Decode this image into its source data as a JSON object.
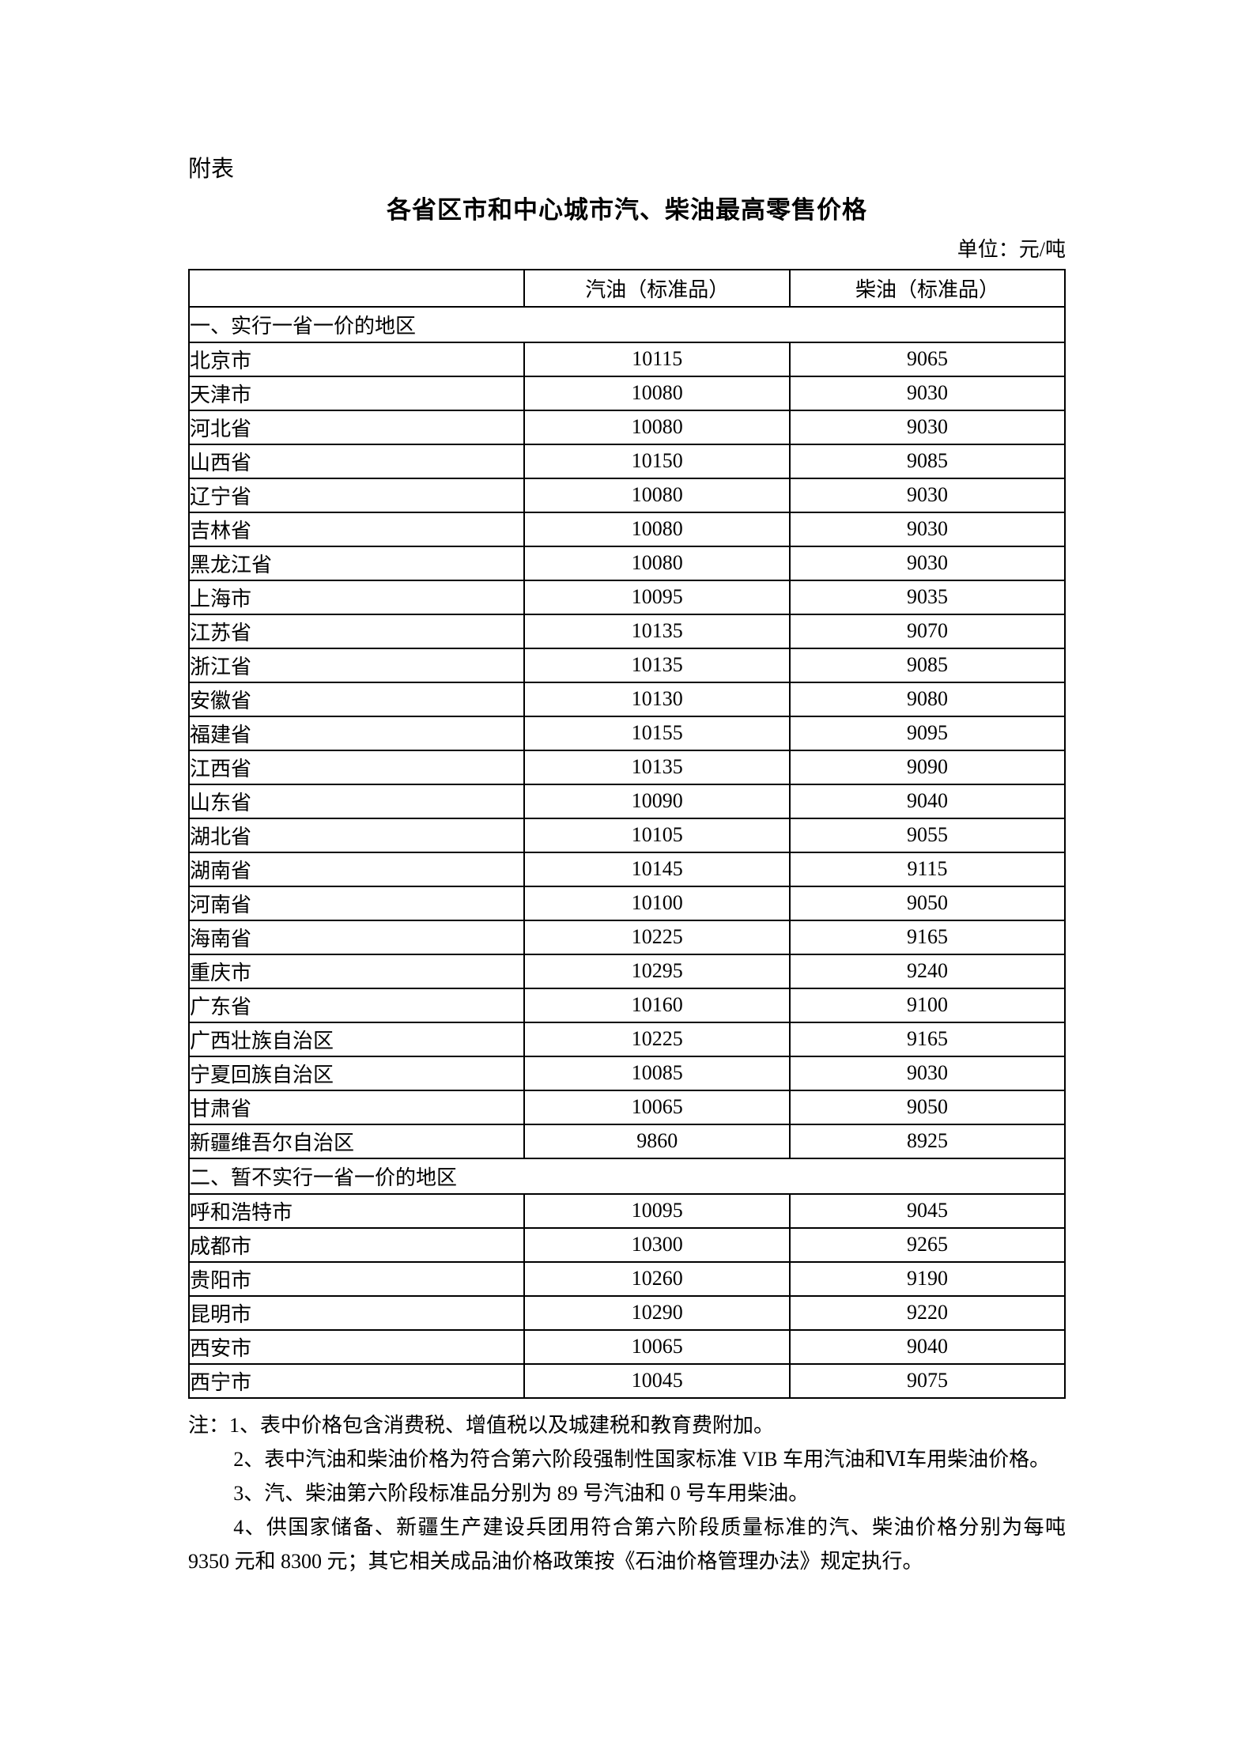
{
  "page": {
    "appendix_label": "附表",
    "title": "各省区市和中心城市汽、柴油最高零售价格",
    "unit_label": "单位：元/吨"
  },
  "table": {
    "columns": [
      "",
      "汽油（标准品）",
      "柴油（标准品）"
    ],
    "sections": [
      {
        "label": "一、实行一省一价的地区",
        "rows": [
          [
            "北京市",
            "10115",
            "9065"
          ],
          [
            "天津市",
            "10080",
            "9030"
          ],
          [
            "河北省",
            "10080",
            "9030"
          ],
          [
            "山西省",
            "10150",
            "9085"
          ],
          [
            "辽宁省",
            "10080",
            "9030"
          ],
          [
            "吉林省",
            "10080",
            "9030"
          ],
          [
            "黑龙江省",
            "10080",
            "9030"
          ],
          [
            "上海市",
            "10095",
            "9035"
          ],
          [
            "江苏省",
            "10135",
            "9070"
          ],
          [
            "浙江省",
            "10135",
            "9085"
          ],
          [
            "安徽省",
            "10130",
            "9080"
          ],
          [
            "福建省",
            "10155",
            "9095"
          ],
          [
            "江西省",
            "10135",
            "9090"
          ],
          [
            "山东省",
            "10090",
            "9040"
          ],
          [
            "湖北省",
            "10105",
            "9055"
          ],
          [
            "湖南省",
            "10145",
            "9115"
          ],
          [
            "河南省",
            "10100",
            "9050"
          ],
          [
            "海南省",
            "10225",
            "9165"
          ],
          [
            "重庆市",
            "10295",
            "9240"
          ],
          [
            "广东省",
            "10160",
            "9100"
          ],
          [
            "广西壮族自治区",
            "10225",
            "9165"
          ],
          [
            "宁夏回族自治区",
            "10085",
            "9030"
          ],
          [
            "甘肃省",
            "10065",
            "9050"
          ],
          [
            "新疆维吾尔自治区",
            "9860",
            "8925"
          ]
        ]
      },
      {
        "label": "二、暂不实行一省一价的地区",
        "rows": [
          [
            "呼和浩特市",
            "10095",
            "9045"
          ],
          [
            "成都市",
            "10300",
            "9265"
          ],
          [
            "贵阳市",
            "10260",
            "9190"
          ],
          [
            "昆明市",
            "10290",
            "9220"
          ],
          [
            "西安市",
            "10065",
            "9040"
          ],
          [
            "西宁市",
            "10045",
            "9075"
          ]
        ]
      }
    ]
  },
  "notes": [
    "注：1、表中价格包含消费税、增值税以及城建税和教育费附加。",
    "2、表中汽油和柴油价格为符合第六阶段强制性国家标准 VIB 车用汽油和Ⅵ车用柴油价格。",
    "3、汽、柴油第六阶段标准品分别为 89 号汽油和 0 号车用柴油。",
    "4、供国家储备、新疆生产建设兵团用符合第六阶段质量标准的汽、柴油价格分别为每吨 9350 元和 8300 元；其它相关成品油价格政策按《石油价格管理办法》规定执行。"
  ]
}
